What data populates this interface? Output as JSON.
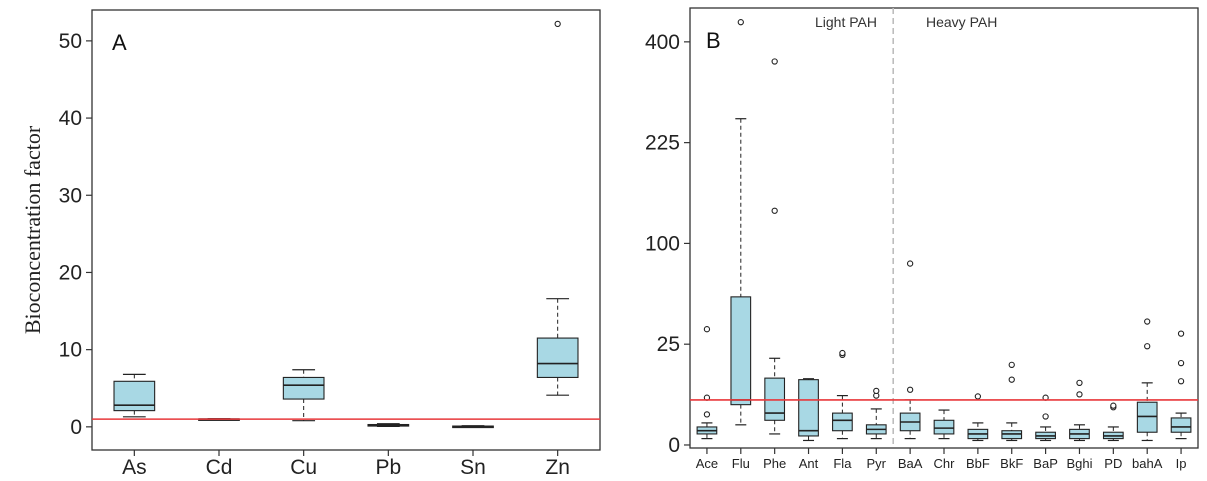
{
  "chart_data": [
    {
      "type": "box",
      "panel_label": "A",
      "ylabel": "Bioconcentration factor",
      "yticks": [
        0,
        10,
        20,
        30,
        40,
        50
      ],
      "ylim": [
        -3,
        54
      ],
      "reference_line": 1,
      "reference_color": "#e8373a",
      "box_color": "#a8d8e4",
      "categories": [
        "As",
        "Cd",
        "Cu",
        "Pb",
        "Sn",
        "Zn"
      ],
      "boxes": [
        {
          "category": "As",
          "whislo": 1.3,
          "q1": 2.1,
          "med": 2.8,
          "q3": 5.9,
          "whishi": 6.8,
          "fliers": []
        },
        {
          "category": "Cd",
          "whislo": 0.95,
          "q1": 0.97,
          "med": 1.0,
          "q3": 1.03,
          "whishi": 1.05,
          "fliers": []
        },
        {
          "category": "Cu",
          "whislo": 0.8,
          "q1": 3.6,
          "med": 5.4,
          "q3": 6.4,
          "whishi": 7.4,
          "fliers": []
        },
        {
          "category": "Pb",
          "whislo": 0.05,
          "q1": 0.1,
          "med": 0.2,
          "q3": 0.3,
          "whishi": 0.4,
          "fliers": []
        },
        {
          "category": "Sn",
          "whislo": 0.02,
          "q1": 0.04,
          "med": 0.07,
          "q3": 0.1,
          "whishi": 0.15,
          "fliers": []
        },
        {
          "category": "Zn",
          "whislo": 4.1,
          "q1": 6.4,
          "med": 8.2,
          "q3": 11.5,
          "whishi": 16.6,
          "fliers": [
            52.2
          ]
        }
      ]
    },
    {
      "type": "box",
      "panel_label": "B",
      "ylabel": "",
      "yticks": [
        0,
        25,
        100,
        225,
        400
      ],
      "y_scale": "sqrt",
      "ylim": [
        -3,
        470
      ],
      "reference_line": 5,
      "reference_color": "#e8373a",
      "box_color": "#a8d8e4",
      "sections": [
        {
          "label": "Light PAH"
        },
        {
          "label": "Heavy PAH"
        }
      ],
      "divider_between": [
        "Pyr",
        "BaA"
      ],
      "categories": [
        "Ace",
        "Flu",
        "Phe",
        "Ant",
        "Fla",
        "Pyr",
        "BaA",
        "Chr",
        "BbF",
        "BkF",
        "BaP",
        "Bghi",
        "PD",
        "bahA",
        "Ip"
      ],
      "boxes": [
        {
          "category": "Ace",
          "whislo": 0.1,
          "q1": 0.3,
          "med": 0.5,
          "q3": 0.8,
          "whishi": 1.2,
          "fliers": [
            33,
            5.5,
            2.3
          ]
        },
        {
          "category": "Flu",
          "whislo": 1,
          "q1": 4,
          "med": 5,
          "q3": 54,
          "whishi": 262,
          "fliers": [
            440
          ]
        },
        {
          "category": "Phe",
          "whislo": 0.3,
          "q1": 1.5,
          "med": 2.5,
          "q3": 11,
          "whishi": 18.5,
          "fliers": [
            135,
            362
          ]
        },
        {
          "category": "Ant",
          "whislo": 0.05,
          "q1": 0.2,
          "med": 0.5,
          "q3": 10.5,
          "whishi": 10.8,
          "fliers": []
        },
        {
          "category": "Fla",
          "whislo": 0.1,
          "q1": 0.5,
          "med": 1.5,
          "q3": 2.5,
          "whishi": 6,
          "fliers": [
            20,
            20.8
          ]
        },
        {
          "category": "Pyr",
          "whislo": 0.1,
          "q1": 0.3,
          "med": 0.6,
          "q3": 1,
          "whishi": 3.2,
          "fliers": [
            6,
            7.2
          ]
        },
        {
          "category": "BaA",
          "whislo": 0.1,
          "q1": 0.5,
          "med": 1.3,
          "q3": 2.5,
          "whishi": 5,
          "fliers": [
            7.5,
            81
          ]
        },
        {
          "category": "Chr",
          "whislo": 0.1,
          "q1": 0.3,
          "med": 0.7,
          "q3": 1.5,
          "whishi": 3,
          "fliers": []
        },
        {
          "category": "BbF",
          "whislo": 0.05,
          "q1": 0.1,
          "med": 0.3,
          "q3": 0.6,
          "whishi": 1.2,
          "fliers": [
            5.8
          ]
        },
        {
          "category": "BkF",
          "whislo": 0.05,
          "q1": 0.1,
          "med": 0.3,
          "q3": 0.5,
          "whishi": 1.2,
          "fliers": [
            10.5,
            15.8
          ]
        },
        {
          "category": "BaP",
          "whislo": 0.05,
          "q1": 0.1,
          "med": 0.2,
          "q3": 0.4,
          "whishi": 0.8,
          "fliers": [
            5.5,
            2
          ]
        },
        {
          "category": "Bghi",
          "whislo": 0.05,
          "q1": 0.1,
          "med": 0.3,
          "q3": 0.6,
          "whishi": 1,
          "fliers": [
            6.3,
            9.5
          ]
        },
        {
          "category": "PD",
          "whislo": 0.05,
          "q1": 0.1,
          "med": 0.2,
          "q3": 0.4,
          "whishi": 0.8,
          "fliers": [
            3.5,
            3.8
          ]
        },
        {
          "category": "bahA",
          "whislo": 0.05,
          "q1": 0.4,
          "med": 2,
          "q3": 4.5,
          "whishi": 9.5,
          "fliers": [
            24,
            37.5
          ]
        },
        {
          "category": "Ip",
          "whislo": 0.1,
          "q1": 0.4,
          "med": 0.8,
          "q3": 1.8,
          "whishi": 2.5,
          "fliers": [
            10,
            16.5,
            30.5
          ]
        }
      ]
    }
  ]
}
